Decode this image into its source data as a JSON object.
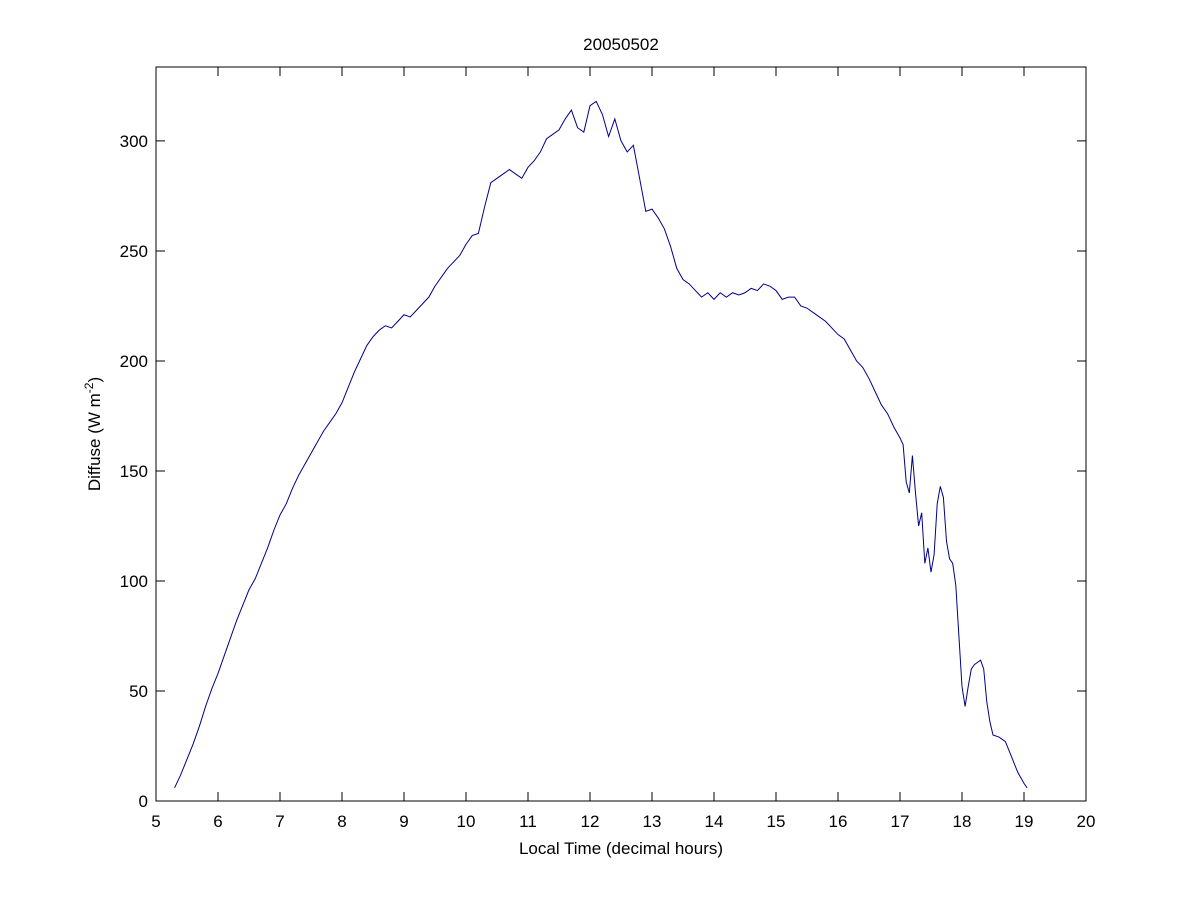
{
  "chart_data": {
    "type": "line",
    "title": "20050502",
    "xlabel": "Local Time (decimal hours)",
    "ylabel": {
      "text": "Diffuse (W m",
      "superscript": "-2",
      "suffix": ")"
    },
    "x": [
      5.3,
      5.4,
      5.5,
      5.6,
      5.7,
      5.8,
      5.9,
      6.0,
      6.1,
      6.2,
      6.3,
      6.4,
      6.5,
      6.6,
      6.7,
      6.8,
      6.9,
      7.0,
      7.1,
      7.2,
      7.3,
      7.4,
      7.5,
      7.6,
      7.7,
      7.8,
      7.9,
      8.0,
      8.1,
      8.2,
      8.3,
      8.4,
      8.5,
      8.6,
      8.7,
      8.8,
      8.9,
      9.0,
      9.1,
      9.2,
      9.3,
      9.4,
      9.5,
      9.6,
      9.7,
      9.8,
      9.9,
      10.0,
      10.1,
      10.2,
      10.3,
      10.4,
      10.5,
      10.6,
      10.7,
      10.8,
      10.9,
      11.0,
      11.1,
      11.2,
      11.3,
      11.4,
      11.5,
      11.6,
      11.7,
      11.8,
      11.9,
      12.0,
      12.1,
      12.2,
      12.3,
      12.4,
      12.5,
      12.6,
      12.7,
      12.8,
      12.9,
      13.0,
      13.1,
      13.2,
      13.3,
      13.4,
      13.5,
      13.6,
      13.7,
      13.8,
      13.9,
      14.0,
      14.1,
      14.2,
      14.3,
      14.4,
      14.5,
      14.6,
      14.7,
      14.8,
      14.9,
      15.0,
      15.1,
      15.2,
      15.3,
      15.4,
      15.5,
      15.6,
      15.7,
      15.8,
      15.9,
      16.0,
      16.1,
      16.2,
      16.3,
      16.4,
      16.5,
      16.6,
      16.7,
      16.8,
      16.9,
      17.0,
      17.05,
      17.1,
      17.15,
      17.2,
      17.25,
      17.3,
      17.35,
      17.4,
      17.45,
      17.5,
      17.55,
      17.6,
      17.65,
      17.7,
      17.75,
      17.8,
      17.85,
      17.9,
      17.95,
      18.0,
      18.05,
      18.1,
      18.15,
      18.2,
      18.25,
      18.3,
      18.35,
      18.4,
      18.45,
      18.5,
      18.6,
      18.7,
      18.8,
      18.9,
      19.0,
      19.05
    ],
    "series": [
      {
        "color": "#00008b",
        "values": [
          6,
          12,
          19,
          26,
          34,
          43,
          51,
          58,
          66,
          74,
          82,
          89,
          96,
          101,
          108,
          115,
          123,
          130,
          135,
          142,
          148,
          153,
          158,
          163,
          168,
          172,
          176,
          181,
          188,
          195,
          201,
          207,
          211,
          214,
          216,
          215,
          218,
          221,
          220,
          223,
          226,
          229,
          234,
          238,
          242,
          245,
          248,
          253,
          257,
          258,
          270,
          281,
          283,
          285,
          287,
          285,
          283,
          288,
          291,
          295,
          301,
          303,
          305,
          310,
          314,
          306,
          304,
          316,
          318,
          312,
          302,
          310,
          300,
          295,
          298,
          283,
          268,
          269,
          265,
          260,
          252,
          242,
          237,
          235,
          232,
          229,
          231,
          228,
          231,
          229,
          231,
          230,
          231,
          233,
          232,
          235,
          234,
          232,
          228,
          229,
          229,
          225,
          224,
          222,
          220,
          218,
          215,
          212,
          210,
          205,
          200,
          197,
          192,
          186,
          180,
          176,
          170,
          165,
          162,
          145,
          140,
          157,
          140,
          125,
          131,
          108,
          115,
          104,
          112,
          135,
          143,
          138,
          118,
          110,
          108,
          98,
          75,
          52,
          43,
          52,
          60,
          62,
          63,
          64,
          60,
          45,
          36,
          30,
          29,
          27,
          20,
          13,
          8,
          6
        ]
      }
    ],
    "xlim": [
      5,
      20
    ],
    "ylim": [
      0,
      333.6
    ],
    "xticks": [
      5,
      6,
      7,
      8,
      9,
      10,
      11,
      12,
      13,
      14,
      15,
      16,
      17,
      18,
      19,
      20
    ],
    "yticks": [
      0,
      50,
      100,
      150,
      200,
      250,
      300
    ]
  }
}
